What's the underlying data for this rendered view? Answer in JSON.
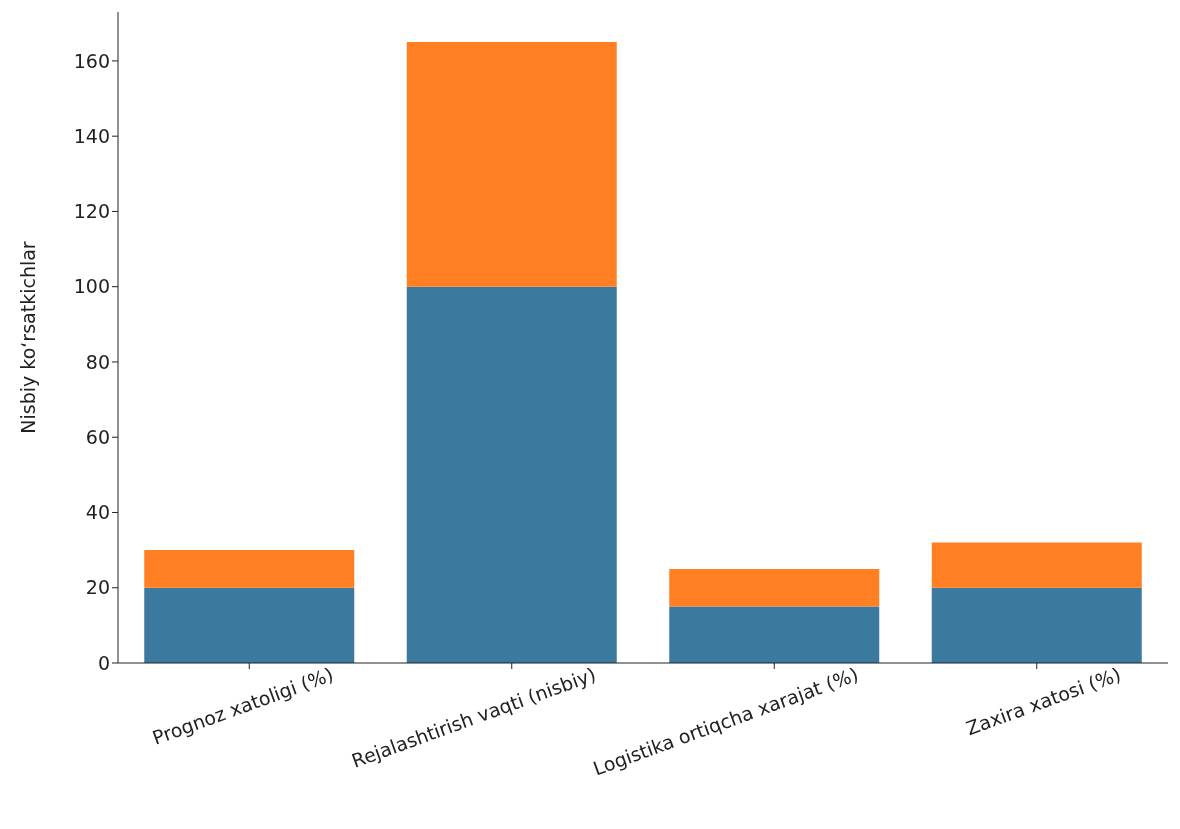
{
  "chart_data": {
    "type": "bar",
    "stacked": true,
    "ylabel": "Nisbiy ko‘rsatkichlar",
    "categories": [
      "Prognoz xatoligi (%)",
      "Rejalashtirish vaqti (nisbiy)",
      "Logistika ortiqcha xarajat (%)",
      "Zaxira xatosi (%)"
    ],
    "series": [
      {
        "color": "#3b7a9e",
        "values": [
          20,
          100,
          15,
          20
        ]
      },
      {
        "color": "#ff7f22",
        "values": [
          10,
          65,
          10,
          12
        ]
      }
    ],
    "ylim": [
      0,
      173
    ],
    "yticks": [
      0,
      20,
      40,
      60,
      80,
      100,
      120,
      140,
      160
    ],
    "grid": false,
    "legend": false
  }
}
